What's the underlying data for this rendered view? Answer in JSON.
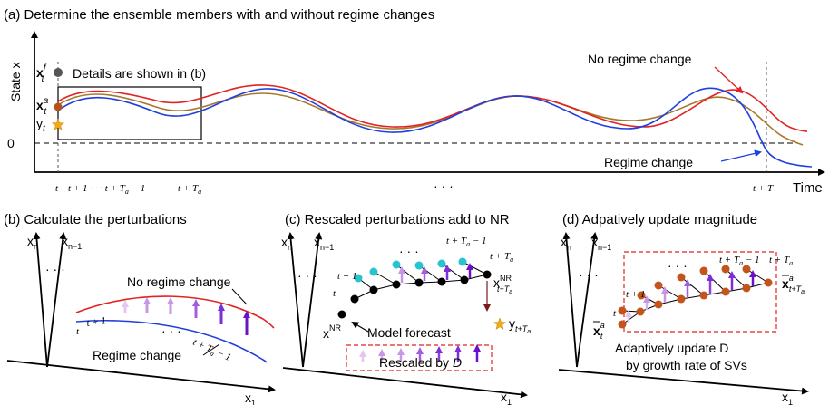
{
  "panel_a": {
    "title": "(a) Determine the ensemble members with and without regime changes",
    "y_axis_label": "State x",
    "x_axis_label": "Time",
    "zero_label": "0",
    "xf_label": "x",
    "xf_sup": "f",
    "xf_sub": "t",
    "xa_label": "x",
    "xa_sup": "a",
    "xa_sub": "t",
    "y_label": "y",
    "y_sub": "t",
    "details_note": "Details are shown in (b)",
    "no_regime_label": "No regime change",
    "regime_label": "Regime change",
    "tick_t": "t",
    "tick_range": "t + 1 · · · t + T",
    "tick_range_sub": "a",
    "tick_range_tail": " − 1",
    "tick_tTa": "t + T",
    "tick_tTa_sub": "a",
    "tick_dots": "· · ·",
    "tick_tT": "t + T",
    "colors": {
      "red": "#e32222",
      "blue": "#1f3fe0",
      "brown": "#a7782c",
      "xf_dot": "#555555",
      "xa_dot": "#b4521b",
      "star": "#f2a81d"
    }
  },
  "panel_b": {
    "title": "(b) Calculate the perturbations",
    "axis_xn": "x",
    "axis_xn_sub": "n",
    "axis_xn1": "x",
    "axis_xn1_sub": "n−1",
    "axis_x1": "x",
    "axis_x1_sub": "1",
    "dots": "· · ·",
    "no_regime_label": "No regime change",
    "regime_label": "Regime change",
    "t_label": "t",
    "t1_label": "t + 1",
    "dots2": "· · ·",
    "tTa_label": "t + T",
    "tTa_sub": "a",
    "tTa_tail": " − 1"
  },
  "panel_c": {
    "title": "(c) Rescaled perturbations add to NR",
    "axis_xn": "x",
    "axis_xn_sub": "n",
    "axis_xn1": "x",
    "axis_xn1_sub": "n−1",
    "axis_x1": "x",
    "axis_x1_sub": "1",
    "dots": "· · ·",
    "t_label": "t",
    "t1_label": "t + 1",
    "dots2": "· · ·",
    "tTa1_label": "t + T",
    "tTa1_sub": "a",
    "tTa1_tail": " − 1",
    "tTa_label": "t + T",
    "tTa_sub": "a",
    "xnr_label": "x",
    "xnr_sup": "NR",
    "xnr_end_sup": "NR",
    "xnr_end_sub": "t+T",
    "xnr_end_subsub": "a",
    "y_label": "y",
    "y_sub": "t+T",
    "y_subsub": "a",
    "model_forecast": "Model forecast",
    "rescaled_by": "Rescaled by ",
    "rescaled_D": "D",
    "colors": {
      "cyan": "#27c4d0",
      "black": "#000000"
    }
  },
  "panel_d": {
    "title": "(d) Adpatively update magnitude",
    "axis_xn": "x",
    "axis_xn_sub": "n",
    "axis_xn1": "x",
    "axis_xn1_sub": "n−1",
    "axis_x1": "x",
    "axis_x1_sub": "1",
    "dots": "· · ·",
    "t_label": "t",
    "t1_label": "t + 1",
    "dots2": "· · ·",
    "tTa1_label": "t + T",
    "tTa1_sub": "a",
    "tTa1_tail": " − 1",
    "tTa_label": "t + T",
    "tTa_sub": "a",
    "xbar_start": "x",
    "xbar_start_sup": "a",
    "xbar_start_sub": "t",
    "xbar_end": "x",
    "xbar_end_sup": "a",
    "xbar_end_sub": "t+T",
    "xbar_end_subsub": "a",
    "note_line1": "Adaptively update D",
    "note_line2": "by growth rate of SVs",
    "colors": {
      "orange": "#c4541c"
    }
  }
}
